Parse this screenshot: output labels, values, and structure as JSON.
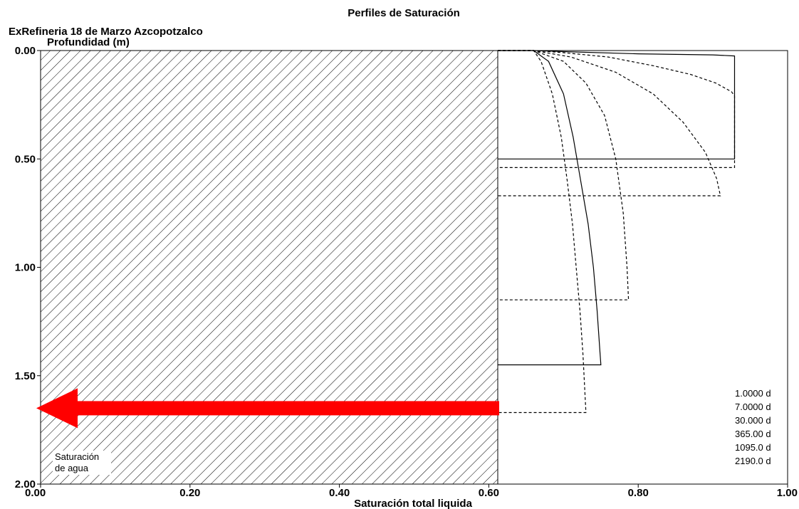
{
  "chart_data": {
    "type": "line",
    "title": "Perfiles de Saturación",
    "subtitle": "ExRefineria 18 de Marzo Azcopotzalco",
    "ylabel": "Profundidad (m)",
    "xlabel": "Saturación total liquida",
    "xlim": [
      0,
      1
    ],
    "ylim": [
      2,
      0
    ],
    "x_ticks": [
      "0.00",
      "0.20",
      "0.40",
      "0.60",
      "0.80",
      "1.00"
    ],
    "y_ticks": [
      "0.00",
      "0.50",
      "1.00",
      "1.50",
      "2.00"
    ],
    "shaded_region": {
      "x_max": 0.612,
      "label": "Saturación de agua"
    },
    "arrow": {
      "color": "#ff0000",
      "depth": 1.65
    },
    "grid": false,
    "legend_position": "bottom-right",
    "series": [
      {
        "name": "1.0000 d",
        "style": "solid",
        "points": [
          [
            0.612,
            0.0
          ],
          [
            0.66,
            0.0
          ],
          [
            0.7,
            0.005
          ],
          [
            0.8,
            0.015
          ],
          [
            0.9,
            0.02
          ],
          [
            0.929,
            0.025
          ],
          [
            0.929,
            0.5
          ],
          [
            0.612,
            0.5
          ]
        ]
      },
      {
        "name": "7.0000 d",
        "style": "dashed",
        "points": [
          [
            0.612,
            0.0
          ],
          [
            0.66,
            0.0
          ],
          [
            0.7,
            0.01
          ],
          [
            0.76,
            0.03
          ],
          [
            0.82,
            0.07
          ],
          [
            0.87,
            0.11
          ],
          [
            0.904,
            0.15
          ],
          [
            0.925,
            0.19
          ],
          [
            0.929,
            0.21
          ],
          [
            0.929,
            0.54
          ],
          [
            0.612,
            0.54
          ]
        ]
      },
      {
        "name": "30.000 d",
        "style": "dashed",
        "points": [
          [
            0.612,
            0.0
          ],
          [
            0.66,
            0.0
          ],
          [
            0.71,
            0.03
          ],
          [
            0.77,
            0.1
          ],
          [
            0.82,
            0.2
          ],
          [
            0.86,
            0.33
          ],
          [
            0.89,
            0.47
          ],
          [
            0.905,
            0.59
          ],
          [
            0.91,
            0.67
          ],
          [
            0.612,
            0.67
          ]
        ]
      },
      {
        "name": "365.00 d",
        "style": "dashed",
        "points": [
          [
            0.612,
            0.0
          ],
          [
            0.66,
            0.0
          ],
          [
            0.7,
            0.05
          ],
          [
            0.73,
            0.15
          ],
          [
            0.755,
            0.3
          ],
          [
            0.77,
            0.5
          ],
          [
            0.78,
            0.75
          ],
          [
            0.785,
            1.0
          ],
          [
            0.787,
            1.15
          ],
          [
            0.612,
            1.15
          ]
        ]
      },
      {
        "name": "1095.0 d",
        "style": "solid",
        "points": [
          [
            0.612,
            0.0
          ],
          [
            0.66,
            0.0
          ],
          [
            0.68,
            0.05
          ],
          [
            0.7,
            0.2
          ],
          [
            0.713,
            0.4
          ],
          [
            0.723,
            0.6
          ],
          [
            0.733,
            0.8
          ],
          [
            0.74,
            1.0
          ],
          [
            0.745,
            1.2
          ],
          [
            0.749,
            1.4
          ],
          [
            0.75,
            1.45
          ],
          [
            0.612,
            1.45
          ]
        ]
      },
      {
        "name": "2190.0 d",
        "style": "dashed",
        "points": [
          [
            0.612,
            0.0
          ],
          [
            0.66,
            0.0
          ],
          [
            0.67,
            0.05
          ],
          [
            0.685,
            0.2
          ],
          [
            0.697,
            0.4
          ],
          [
            0.705,
            0.6
          ],
          [
            0.712,
            0.8
          ],
          [
            0.717,
            1.0
          ],
          [
            0.722,
            1.2
          ],
          [
            0.726,
            1.4
          ],
          [
            0.729,
            1.6
          ],
          [
            0.73,
            1.67
          ],
          [
            0.612,
            1.67
          ]
        ]
      }
    ]
  }
}
